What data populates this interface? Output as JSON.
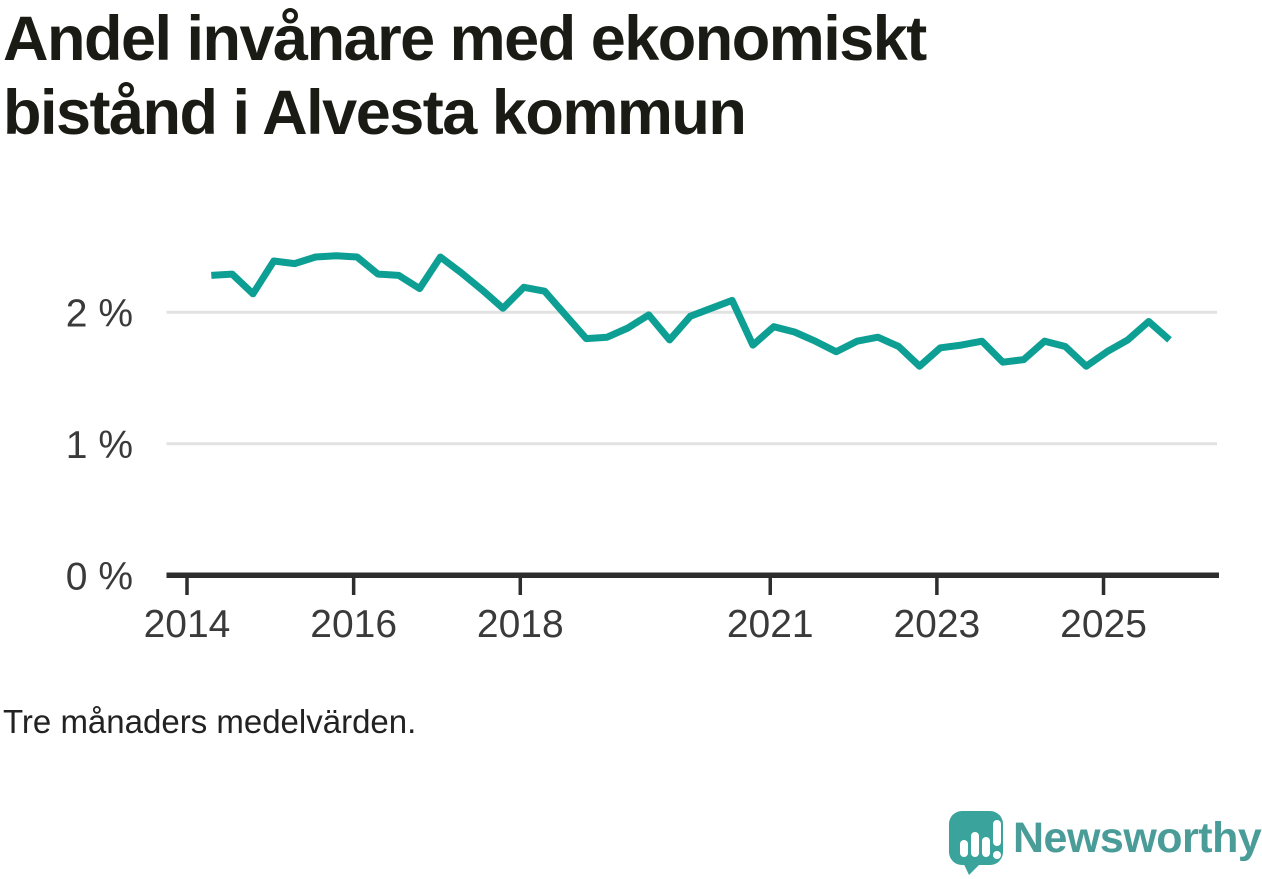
{
  "title": "Andel invånare med ekonomiskt bistånd i Alvesta kommun",
  "footnote": "Tre månaders medelvärden.",
  "logo": {
    "wordmark": "Newsworthy",
    "icon": "bar-chart-speech-bubble",
    "bubble_color": "#3aa49c",
    "text_color": "#4a9c98"
  },
  "colors": {
    "line": "#0d9f94",
    "grid": "#e2e2e2",
    "axis": "#2d2d2d",
    "tick_text": "#3a3a3a",
    "title_text": "#1b1b15"
  },
  "chart_data": {
    "type": "line",
    "title": "Andel invånare med ekonomiskt bistånd i Alvesta kommun",
    "xlabel": "",
    "ylabel": "",
    "grid": "horizontal",
    "legend": "none",
    "ylim": [
      0,
      2.6
    ],
    "xlim_years": [
      2013.75,
      2026.4
    ],
    "y_ticks": [
      0,
      1,
      2
    ],
    "y_tick_labels": [
      "0 %",
      "1 %",
      "2 %"
    ],
    "x_ticks": [
      2014,
      2016,
      2018,
      2021,
      2023,
      2025
    ],
    "series": [
      {
        "name": "Andel invånare med ekonomiskt bistånd",
        "unit": "%",
        "points": [
          [
            "2014-04",
            2.28
          ],
          [
            "2014-07",
            2.29
          ],
          [
            "2014-10",
            2.14
          ],
          [
            "2015-01",
            2.39
          ],
          [
            "2015-04",
            2.37
          ],
          [
            "2015-07",
            2.42
          ],
          [
            "2015-10",
            2.43
          ],
          [
            "2016-01",
            2.42
          ],
          [
            "2016-04",
            2.29
          ],
          [
            "2016-07",
            2.28
          ],
          [
            "2016-10",
            2.18
          ],
          [
            "2017-01",
            2.42
          ],
          [
            "2017-04",
            2.3
          ],
          [
            "2017-07",
            2.17
          ],
          [
            "2017-10",
            2.03
          ],
          [
            "2018-01",
            2.19
          ],
          [
            "2018-04",
            2.16
          ],
          [
            "2018-07",
            1.98
          ],
          [
            "2018-10",
            1.8
          ],
          [
            "2019-01",
            1.81
          ],
          [
            "2019-04",
            1.88
          ],
          [
            "2019-07",
            1.98
          ],
          [
            "2019-10",
            1.79
          ],
          [
            "2020-01",
            1.97
          ],
          [
            "2020-04",
            2.03
          ],
          [
            "2020-07",
            2.09
          ],
          [
            "2020-10",
            1.75
          ],
          [
            "2021-01",
            1.89
          ],
          [
            "2021-04",
            1.85
          ],
          [
            "2021-07",
            1.78
          ],
          [
            "2021-10",
            1.7
          ],
          [
            "2022-01",
            1.78
          ],
          [
            "2022-04",
            1.81
          ],
          [
            "2022-07",
            1.74
          ],
          [
            "2022-10",
            1.59
          ],
          [
            "2023-01",
            1.73
          ],
          [
            "2023-04",
            1.75
          ],
          [
            "2023-07",
            1.78
          ],
          [
            "2023-10",
            1.62
          ],
          [
            "2024-01",
            1.64
          ],
          [
            "2024-04",
            1.78
          ],
          [
            "2024-07",
            1.74
          ],
          [
            "2024-10",
            1.59
          ],
          [
            "2025-01",
            1.7
          ],
          [
            "2025-04",
            1.79
          ],
          [
            "2025-07",
            1.93
          ],
          [
            "2025-10",
            1.79
          ]
        ]
      }
    ]
  }
}
